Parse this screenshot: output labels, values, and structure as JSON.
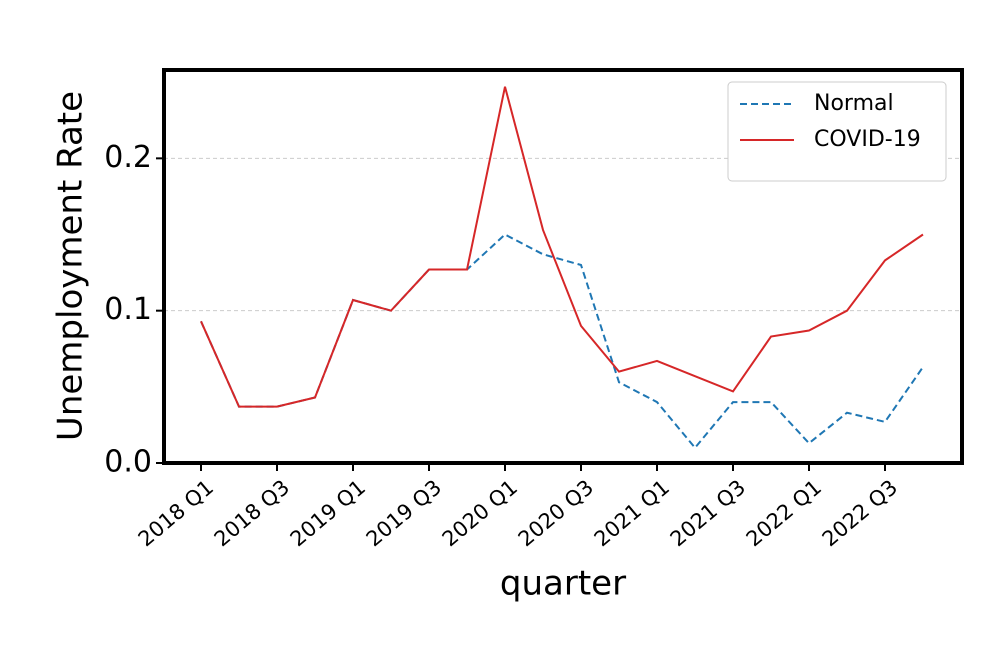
{
  "chart_data": {
    "type": "line",
    "x_label": "quarter",
    "y_label": "Unemployment Rate",
    "categories": [
      "2018 Q1",
      null,
      "2018 Q3",
      null,
      "2019 Q1",
      null,
      "2019 Q3",
      null,
      "2020 Q1",
      null,
      "2020 Q3",
      null,
      "2021 Q1",
      null,
      "2021 Q3",
      null,
      "2022 Q1",
      null,
      "2022 Q3",
      null
    ],
    "series": [
      {
        "name": "Normal",
        "color": "#1f77b4",
        "dashed": true,
        "values": [
          0.093,
          0.037,
          0.037,
          0.043,
          0.107,
          0.1,
          0.127,
          0.127,
          0.15,
          0.137,
          0.13,
          0.053,
          0.04,
          0.01,
          0.04,
          0.04,
          0.013,
          0.033,
          0.027,
          0.063
        ]
      },
      {
        "name": "COVID-19",
        "color": "#d62728",
        "dashed": false,
        "values": [
          0.093,
          0.037,
          0.037,
          0.043,
          0.107,
          0.1,
          0.127,
          0.127,
          0.247,
          0.153,
          0.09,
          0.06,
          0.067,
          0.057,
          0.047,
          0.083,
          0.087,
          0.1,
          0.133,
          0.15
        ]
      }
    ],
    "ylim": [
      0,
      0.258
    ],
    "yticks": [
      {
        "value": 0,
        "label": "0.0"
      },
      0.1,
      0.2
    ],
    "grid": true,
    "legend": "upper right"
  }
}
